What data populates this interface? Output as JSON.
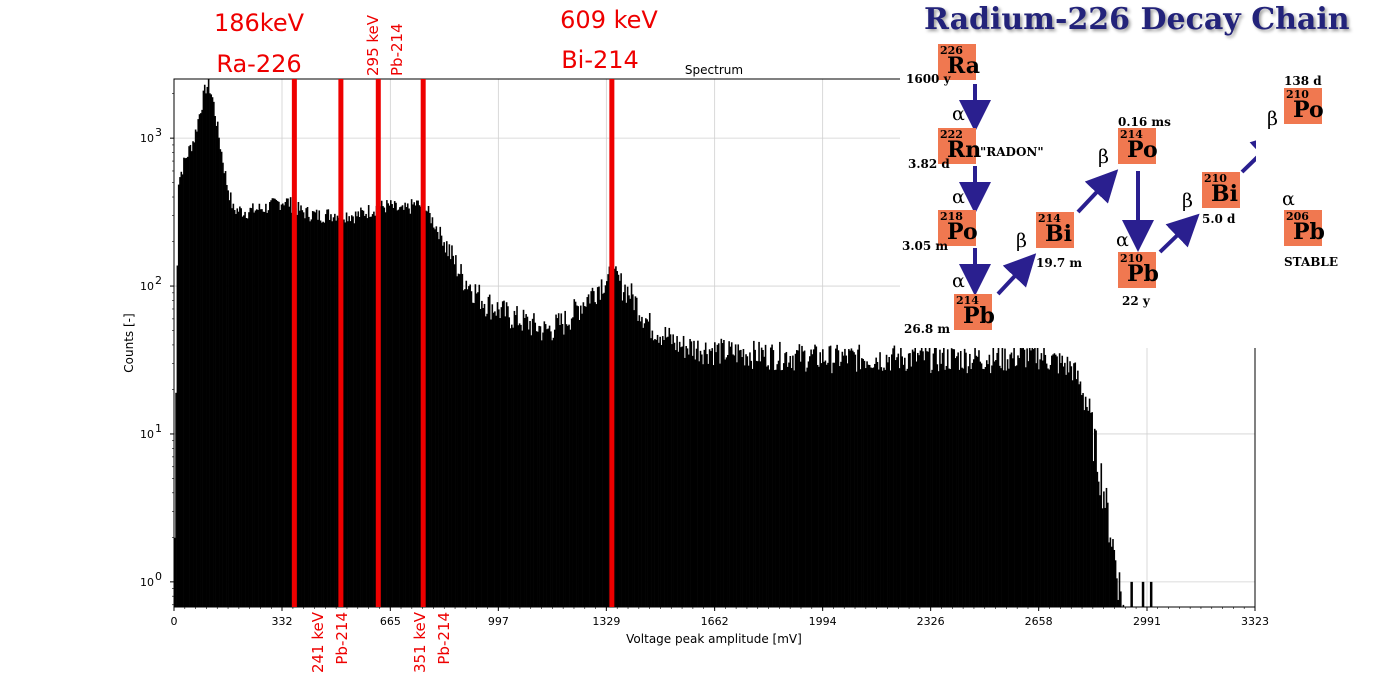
{
  "chart_data": {
    "type": "bar",
    "title": "Spectrum",
    "xlabel": "Voltage peak amplitude [mV]",
    "ylabel": "Counts [-]",
    "xlim": [
      0,
      3323
    ],
    "ylim_log10": [
      -0.17,
      3.4
    ],
    "yscale": "log",
    "grid": true,
    "xticks": [
      "0",
      "332",
      "665",
      "997",
      "1329",
      "1662",
      "1994",
      "2326",
      "2658",
      "2991",
      "3323"
    ],
    "xtick_values": [
      0,
      332,
      665,
      997,
      1329,
      1662,
      1994,
      2326,
      2658,
      2991,
      3323
    ],
    "yticks": [
      {
        "base": "10",
        "exp": "0",
        "value": 1
      },
      {
        "base": "10",
        "exp": "1",
        "value": 10
      },
      {
        "base": "10",
        "exp": "2",
        "value": 100
      },
      {
        "base": "10",
        "exp": "3",
        "value": 1000
      }
    ],
    "spectrum_profile": [
      {
        "x": 0,
        "y": 2.0
      },
      {
        "x": 10,
        "y": 500
      },
      {
        "x": 30,
        "y": 700
      },
      {
        "x": 60,
        "y": 1000
      },
      {
        "x": 80,
        "y": 1600
      },
      {
        "x": 95,
        "y": 2200
      },
      {
        "x": 105,
        "y": 2300
      },
      {
        "x": 118,
        "y": 1800
      },
      {
        "x": 140,
        "y": 900
      },
      {
        "x": 160,
        "y": 500
      },
      {
        "x": 180,
        "y": 330
      },
      {
        "x": 220,
        "y": 320
      },
      {
        "x": 280,
        "y": 340
      },
      {
        "x": 340,
        "y": 380
      },
      {
        "x": 390,
        "y": 320
      },
      {
        "x": 440,
        "y": 300
      },
      {
        "x": 500,
        "y": 310
      },
      {
        "x": 560,
        "y": 300
      },
      {
        "x": 620,
        "y": 340
      },
      {
        "x": 660,
        "y": 350
      },
      {
        "x": 700,
        "y": 320
      },
      {
        "x": 740,
        "y": 360
      },
      {
        "x": 770,
        "y": 340
      },
      {
        "x": 830,
        "y": 200
      },
      {
        "x": 880,
        "y": 120
      },
      {
        "x": 950,
        "y": 80
      },
      {
        "x": 1020,
        "y": 65
      },
      {
        "x": 1100,
        "y": 55
      },
      {
        "x": 1140,
        "y": 50
      },
      {
        "x": 1200,
        "y": 58
      },
      {
        "x": 1260,
        "y": 80
      },
      {
        "x": 1320,
        "y": 110
      },
      {
        "x": 1350,
        "y": 115
      },
      {
        "x": 1400,
        "y": 90
      },
      {
        "x": 1460,
        "y": 55
      },
      {
        "x": 1550,
        "y": 40
      },
      {
        "x": 1700,
        "y": 36
      },
      {
        "x": 2000,
        "y": 33
      },
      {
        "x": 2300,
        "y": 33
      },
      {
        "x": 2550,
        "y": 33
      },
      {
        "x": 2650,
        "y": 35
      },
      {
        "x": 2760,
        "y": 28
      },
      {
        "x": 2800,
        "y": 18
      },
      {
        "x": 2850,
        "y": 5
      },
      {
        "x": 2890,
        "y": 1.5
      },
      {
        "x": 2920,
        "y": 0.6
      }
    ],
    "isolated_counts": [
      {
        "x": 2940,
        "y": 1
      },
      {
        "x": 2975,
        "y": 1
      },
      {
        "x": 3000,
        "y": 1
      }
    ],
    "lines": [
      {
        "x": 370,
        "color": "#ee0000"
      },
      {
        "x": 513,
        "color": "#ee0000"
      },
      {
        "x": 628,
        "color": "#ee0000"
      },
      {
        "x": 766,
        "color": "#ee0000"
      },
      {
        "x": 1346,
        "color": "#ee0000"
      }
    ],
    "annotations": {
      "a186_energy": "186keV",
      "a186_isotope": "Ra-226",
      "a295_energy": "295 keV",
      "a295_isotope": "Pb-214",
      "a609_energy": "609 keV",
      "a609_isotope": "Bi-214",
      "a241_energy": "241 keV",
      "a241_isotope": "Pb-214",
      "a351_energy": "351 keV",
      "a351_isotope": "Pb-214"
    },
    "colors": {
      "bars": "#000000",
      "lines": "#ee0000",
      "grid": "#d0d0d0"
    }
  },
  "decay_chain": {
    "title": "Radium-226 Decay Chain",
    "box_color": "#f07850",
    "arrow_color": "#2a1f8f",
    "nuclides": {
      "ra226": {
        "mass": "226",
        "symbol": "Ra"
      },
      "rn222": {
        "mass": "222",
        "symbol": "Rn"
      },
      "po218": {
        "mass": "218",
        "symbol": "Po"
      },
      "pb214": {
        "mass": "214",
        "symbol": "Pb"
      },
      "bi214": {
        "mass": "214",
        "symbol": "Bi"
      },
      "po214": {
        "mass": "214",
        "symbol": "Po"
      },
      "pb210": {
        "mass": "210",
        "symbol": "Pb"
      },
      "bi210": {
        "mass": "210",
        "symbol": "Bi"
      },
      "po210": {
        "mass": "210",
        "symbol": "Po"
      },
      "pb206": {
        "mass": "206",
        "symbol": "Pb"
      }
    },
    "labels": {
      "ra226_hl": "1600 y",
      "rn222_hl": "3.82 d",
      "rn222_name": "\"RADON\"",
      "po218_hl": "3.05 m",
      "pb214_hl": "26.8 m",
      "bi214_hl": "19.7 m",
      "po214_hl": "0.16 ms",
      "pb210_hl": "22 y",
      "bi210_hl": "5.0 d",
      "po210_hl": "138 d",
      "pb206_hl": "STABLE"
    },
    "alpha": "α",
    "beta": "β"
  }
}
